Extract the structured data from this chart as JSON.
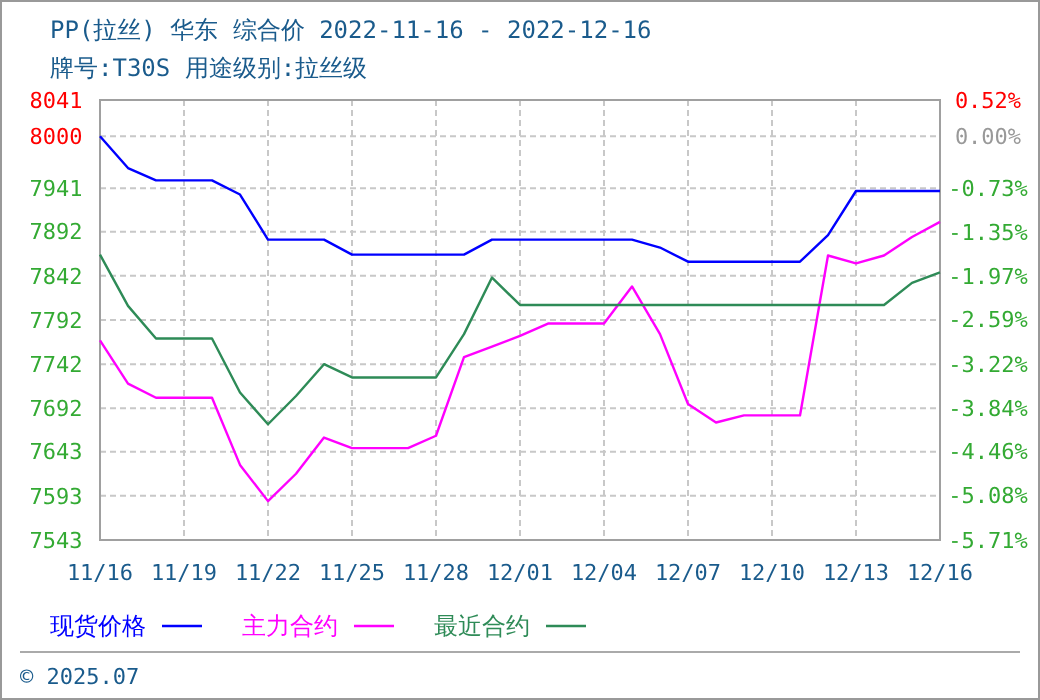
{
  "chart_data": {
    "type": "line",
    "title": "PP(拉丝) 华东 综合价 2022-11-16 - 2022-12-16",
    "subtitle": "牌号:T30S 用途级别:拉丝级",
    "x": [
      "2022-11-16",
      "2022-11-17",
      "2022-11-18",
      "2022-11-19",
      "2022-11-20",
      "2022-11-21",
      "2022-11-22",
      "2022-11-23",
      "2022-11-24",
      "2022-11-25",
      "2022-11-26",
      "2022-11-27",
      "2022-11-28",
      "2022-11-29",
      "2022-11-30",
      "2022-12-01",
      "2022-12-02",
      "2022-12-03",
      "2022-12-04",
      "2022-12-05",
      "2022-12-06",
      "2022-12-07",
      "2022-12-08",
      "2022-12-09",
      "2022-12-10",
      "2022-12-11",
      "2022-12-12",
      "2022-12-13",
      "2022-12-14",
      "2022-12-15",
      "2022-12-16"
    ],
    "series": [
      {
        "name": "现货价格",
        "color": "#0000ff",
        "values": [
          8000,
          7964,
          7950,
          7950,
          7950,
          7934,
          7883,
          7883,
          7883,
          7866,
          7866,
          7866,
          7866,
          7866,
          7883,
          7883,
          7883,
          7883,
          7883,
          7883,
          7874,
          7858,
          7858,
          7858,
          7858,
          7858,
          7888,
          7938,
          7938,
          7938,
          7938
        ]
      },
      {
        "name": "主力合约",
        "color": "#ff00ff",
        "values": [
          7769,
          7720,
          7704,
          7704,
          7704,
          7628,
          7587,
          7618,
          7659,
          7647,
          7647,
          7647,
          7661,
          7750,
          7762,
          7774,
          7788,
          7788,
          7788,
          7830,
          7776,
          7697,
          7676,
          7684,
          7684,
          7684,
          7865,
          7856,
          7865,
          7886,
          7903
        ]
      },
      {
        "name": "最近合约",
        "color": "#2e8b57",
        "values": [
          7866,
          7808,
          7771,
          7771,
          7771,
          7710,
          7674,
          7706,
          7742,
          7727,
          7727,
          7727,
          7727,
          7776,
          7840,
          7809,
          7809,
          7809,
          7809,
          7809,
          7809,
          7809,
          7809,
          7809,
          7809,
          7809,
          7809,
          7809,
          7809,
          7834,
          7846
        ]
      }
    ],
    "xlim": [
      "2022-11-16",
      "2022-12-16"
    ],
    "xticks": [
      {
        "value": "2022-11-16",
        "label": "11/16"
      },
      {
        "value": "2022-11-19",
        "label": "11/19"
      },
      {
        "value": "2022-11-22",
        "label": "11/22"
      },
      {
        "value": "2022-11-25",
        "label": "11/25"
      },
      {
        "value": "2022-11-28",
        "label": "11/28"
      },
      {
        "value": "2022-12-01",
        "label": "12/01"
      },
      {
        "value": "2022-12-04",
        "label": "12/04"
      },
      {
        "value": "2022-12-07",
        "label": "12/07"
      },
      {
        "value": "2022-12-10",
        "label": "12/10"
      },
      {
        "value": "2022-12-13",
        "label": "12/13"
      },
      {
        "value": "2022-12-16",
        "label": "12/16"
      }
    ],
    "ylim": [
      7543,
      8041
    ],
    "yticks": [
      7543,
      7593,
      7643,
      7692,
      7742,
      7792,
      7842,
      7892,
      7941,
      8000,
      8041
    ],
    "y2lim": [
      -5.71,
      0.52
    ],
    "y2ticks": [
      {
        "value": -5.71,
        "label": "-5.71%"
      },
      {
        "value": -5.08,
        "label": "-5.08%"
      },
      {
        "value": -4.46,
        "label": "-4.46%"
      },
      {
        "value": -3.84,
        "label": "-3.84%"
      },
      {
        "value": -3.22,
        "label": "-3.22%"
      },
      {
        "value": -2.59,
        "label": "-2.59%"
      },
      {
        "value": -1.97,
        "label": "-1.97%"
      },
      {
        "value": -1.35,
        "label": "-1.35%"
      },
      {
        "value": -0.73,
        "label": "-0.73%"
      },
      {
        "value": 0,
        "label": "0.00%"
      },
      {
        "value": 0.52,
        "label": "0.52%"
      }
    ],
    "grid": true,
    "legend": "bottom",
    "marker": "none",
    "line_style": "solid",
    "annotations": [
      "© 2025.07"
    ]
  }
}
